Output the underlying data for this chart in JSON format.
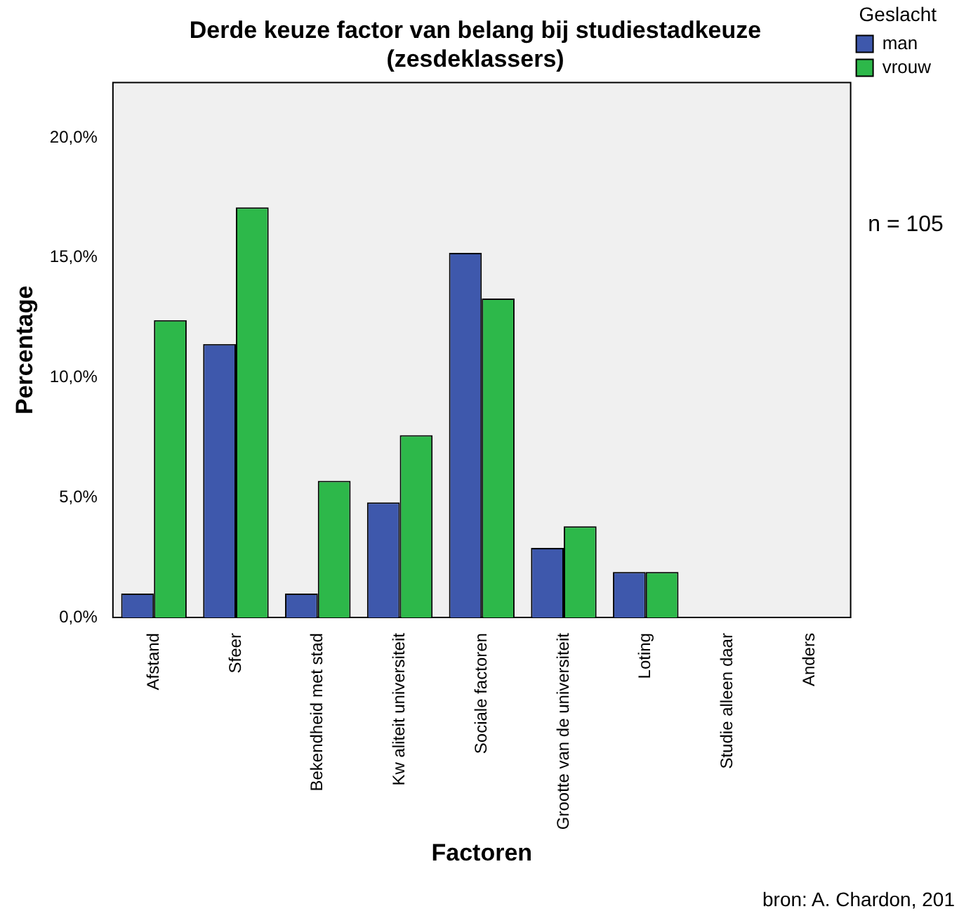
{
  "chart_data": {
    "type": "bar",
    "title": "Derde keuze factor van belang bij studiestadkeuze\n(zesdeklassers)",
    "xlabel": "Factoren",
    "ylabel": "Percentage",
    "legend_title": "Geslacht",
    "categories": [
      "Afstand",
      "Sfeer",
      "Bekendheid met stad",
      "Kw aliteit universiteit",
      "Sociale factoren",
      "Grootte van de universiteit",
      "Loting",
      "Studie alleen daar",
      "Anders"
    ],
    "series": [
      {
        "name": "man",
        "color": "#3e58ac",
        "values": [
          1.0,
          11.4,
          1.0,
          4.8,
          15.2,
          2.9,
          1.9,
          0,
          0
        ]
      },
      {
        "name": "vrouw",
        "color": "#2db84a",
        "values": [
          12.4,
          17.1,
          5.7,
          7.6,
          13.3,
          3.8,
          1.9,
          0,
          0
        ]
      }
    ],
    "ylim": [
      0,
      22.3
    ],
    "yticks": [
      {
        "value": 0,
        "label": "0,0%"
      },
      {
        "value": 5,
        "label": "5,0%"
      },
      {
        "value": 10,
        "label": "10,0%"
      },
      {
        "value": 15,
        "label": "15,0%"
      },
      {
        "value": 20,
        "label": "20,0%"
      }
    ],
    "grid": false,
    "legend": "top right",
    "annotations": [
      "n = 105",
      "bron: A. Chardon, 201"
    ]
  }
}
